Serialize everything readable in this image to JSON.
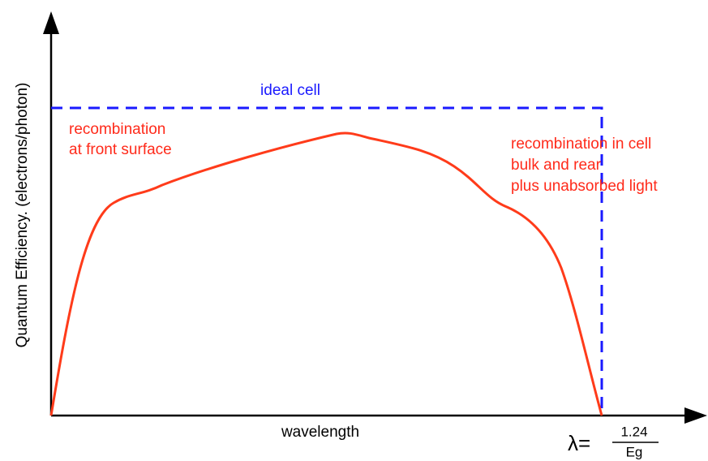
{
  "axes": {
    "y_label": "Quantum Efficiency. (electrons/photon)",
    "x_label": "wavelength"
  },
  "annotations": {
    "ideal": "ideal cell",
    "front": [
      "recombination",
      "at front surface"
    ],
    "rear": [
      "recombination in cell",
      "bulk and rear",
      "plus unabsorbed light"
    ]
  },
  "cutoff": {
    "symbol": "λ=",
    "numerator": "1.24",
    "denominator": "Eg"
  }
}
